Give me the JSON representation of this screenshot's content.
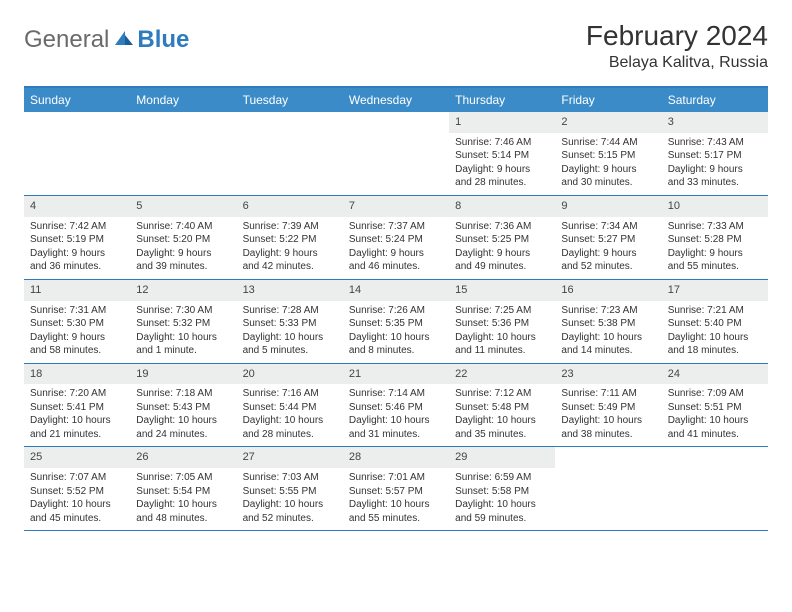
{
  "logo": {
    "text1": "General",
    "text2": "Blue"
  },
  "title": "February 2024",
  "location": "Belaya Kalitva, Russia",
  "colors": {
    "header_bg": "#3b8bc9",
    "border": "#2f7bbf",
    "daynum_bg": "#eceeee",
    "text": "#333333"
  },
  "day_headers": [
    "Sunday",
    "Monday",
    "Tuesday",
    "Wednesday",
    "Thursday",
    "Friday",
    "Saturday"
  ],
  "weeks": [
    [
      {
        "num": "",
        "sunrise": "",
        "sunset": "",
        "daylight": ""
      },
      {
        "num": "",
        "sunrise": "",
        "sunset": "",
        "daylight": ""
      },
      {
        "num": "",
        "sunrise": "",
        "sunset": "",
        "daylight": ""
      },
      {
        "num": "",
        "sunrise": "",
        "sunset": "",
        "daylight": ""
      },
      {
        "num": "1",
        "sunrise": "Sunrise: 7:46 AM",
        "sunset": "Sunset: 5:14 PM",
        "daylight": "Daylight: 9 hours and 28 minutes."
      },
      {
        "num": "2",
        "sunrise": "Sunrise: 7:44 AM",
        "sunset": "Sunset: 5:15 PM",
        "daylight": "Daylight: 9 hours and 30 minutes."
      },
      {
        "num": "3",
        "sunrise": "Sunrise: 7:43 AM",
        "sunset": "Sunset: 5:17 PM",
        "daylight": "Daylight: 9 hours and 33 minutes."
      }
    ],
    [
      {
        "num": "4",
        "sunrise": "Sunrise: 7:42 AM",
        "sunset": "Sunset: 5:19 PM",
        "daylight": "Daylight: 9 hours and 36 minutes."
      },
      {
        "num": "5",
        "sunrise": "Sunrise: 7:40 AM",
        "sunset": "Sunset: 5:20 PM",
        "daylight": "Daylight: 9 hours and 39 minutes."
      },
      {
        "num": "6",
        "sunrise": "Sunrise: 7:39 AM",
        "sunset": "Sunset: 5:22 PM",
        "daylight": "Daylight: 9 hours and 42 minutes."
      },
      {
        "num": "7",
        "sunrise": "Sunrise: 7:37 AM",
        "sunset": "Sunset: 5:24 PM",
        "daylight": "Daylight: 9 hours and 46 minutes."
      },
      {
        "num": "8",
        "sunrise": "Sunrise: 7:36 AM",
        "sunset": "Sunset: 5:25 PM",
        "daylight": "Daylight: 9 hours and 49 minutes."
      },
      {
        "num": "9",
        "sunrise": "Sunrise: 7:34 AM",
        "sunset": "Sunset: 5:27 PM",
        "daylight": "Daylight: 9 hours and 52 minutes."
      },
      {
        "num": "10",
        "sunrise": "Sunrise: 7:33 AM",
        "sunset": "Sunset: 5:28 PM",
        "daylight": "Daylight: 9 hours and 55 minutes."
      }
    ],
    [
      {
        "num": "11",
        "sunrise": "Sunrise: 7:31 AM",
        "sunset": "Sunset: 5:30 PM",
        "daylight": "Daylight: 9 hours and 58 minutes."
      },
      {
        "num": "12",
        "sunrise": "Sunrise: 7:30 AM",
        "sunset": "Sunset: 5:32 PM",
        "daylight": "Daylight: 10 hours and 1 minute."
      },
      {
        "num": "13",
        "sunrise": "Sunrise: 7:28 AM",
        "sunset": "Sunset: 5:33 PM",
        "daylight": "Daylight: 10 hours and 5 minutes."
      },
      {
        "num": "14",
        "sunrise": "Sunrise: 7:26 AM",
        "sunset": "Sunset: 5:35 PM",
        "daylight": "Daylight: 10 hours and 8 minutes."
      },
      {
        "num": "15",
        "sunrise": "Sunrise: 7:25 AM",
        "sunset": "Sunset: 5:36 PM",
        "daylight": "Daylight: 10 hours and 11 minutes."
      },
      {
        "num": "16",
        "sunrise": "Sunrise: 7:23 AM",
        "sunset": "Sunset: 5:38 PM",
        "daylight": "Daylight: 10 hours and 14 minutes."
      },
      {
        "num": "17",
        "sunrise": "Sunrise: 7:21 AM",
        "sunset": "Sunset: 5:40 PM",
        "daylight": "Daylight: 10 hours and 18 minutes."
      }
    ],
    [
      {
        "num": "18",
        "sunrise": "Sunrise: 7:20 AM",
        "sunset": "Sunset: 5:41 PM",
        "daylight": "Daylight: 10 hours and 21 minutes."
      },
      {
        "num": "19",
        "sunrise": "Sunrise: 7:18 AM",
        "sunset": "Sunset: 5:43 PM",
        "daylight": "Daylight: 10 hours and 24 minutes."
      },
      {
        "num": "20",
        "sunrise": "Sunrise: 7:16 AM",
        "sunset": "Sunset: 5:44 PM",
        "daylight": "Daylight: 10 hours and 28 minutes."
      },
      {
        "num": "21",
        "sunrise": "Sunrise: 7:14 AM",
        "sunset": "Sunset: 5:46 PM",
        "daylight": "Daylight: 10 hours and 31 minutes."
      },
      {
        "num": "22",
        "sunrise": "Sunrise: 7:12 AM",
        "sunset": "Sunset: 5:48 PM",
        "daylight": "Daylight: 10 hours and 35 minutes."
      },
      {
        "num": "23",
        "sunrise": "Sunrise: 7:11 AM",
        "sunset": "Sunset: 5:49 PM",
        "daylight": "Daylight: 10 hours and 38 minutes."
      },
      {
        "num": "24",
        "sunrise": "Sunrise: 7:09 AM",
        "sunset": "Sunset: 5:51 PM",
        "daylight": "Daylight: 10 hours and 41 minutes."
      }
    ],
    [
      {
        "num": "25",
        "sunrise": "Sunrise: 7:07 AM",
        "sunset": "Sunset: 5:52 PM",
        "daylight": "Daylight: 10 hours and 45 minutes."
      },
      {
        "num": "26",
        "sunrise": "Sunrise: 7:05 AM",
        "sunset": "Sunset: 5:54 PM",
        "daylight": "Daylight: 10 hours and 48 minutes."
      },
      {
        "num": "27",
        "sunrise": "Sunrise: 7:03 AM",
        "sunset": "Sunset: 5:55 PM",
        "daylight": "Daylight: 10 hours and 52 minutes."
      },
      {
        "num": "28",
        "sunrise": "Sunrise: 7:01 AM",
        "sunset": "Sunset: 5:57 PM",
        "daylight": "Daylight: 10 hours and 55 minutes."
      },
      {
        "num": "29",
        "sunrise": "Sunrise: 6:59 AM",
        "sunset": "Sunset: 5:58 PM",
        "daylight": "Daylight: 10 hours and 59 minutes."
      },
      {
        "num": "",
        "sunrise": "",
        "sunset": "",
        "daylight": ""
      },
      {
        "num": "",
        "sunrise": "",
        "sunset": "",
        "daylight": ""
      }
    ]
  ]
}
